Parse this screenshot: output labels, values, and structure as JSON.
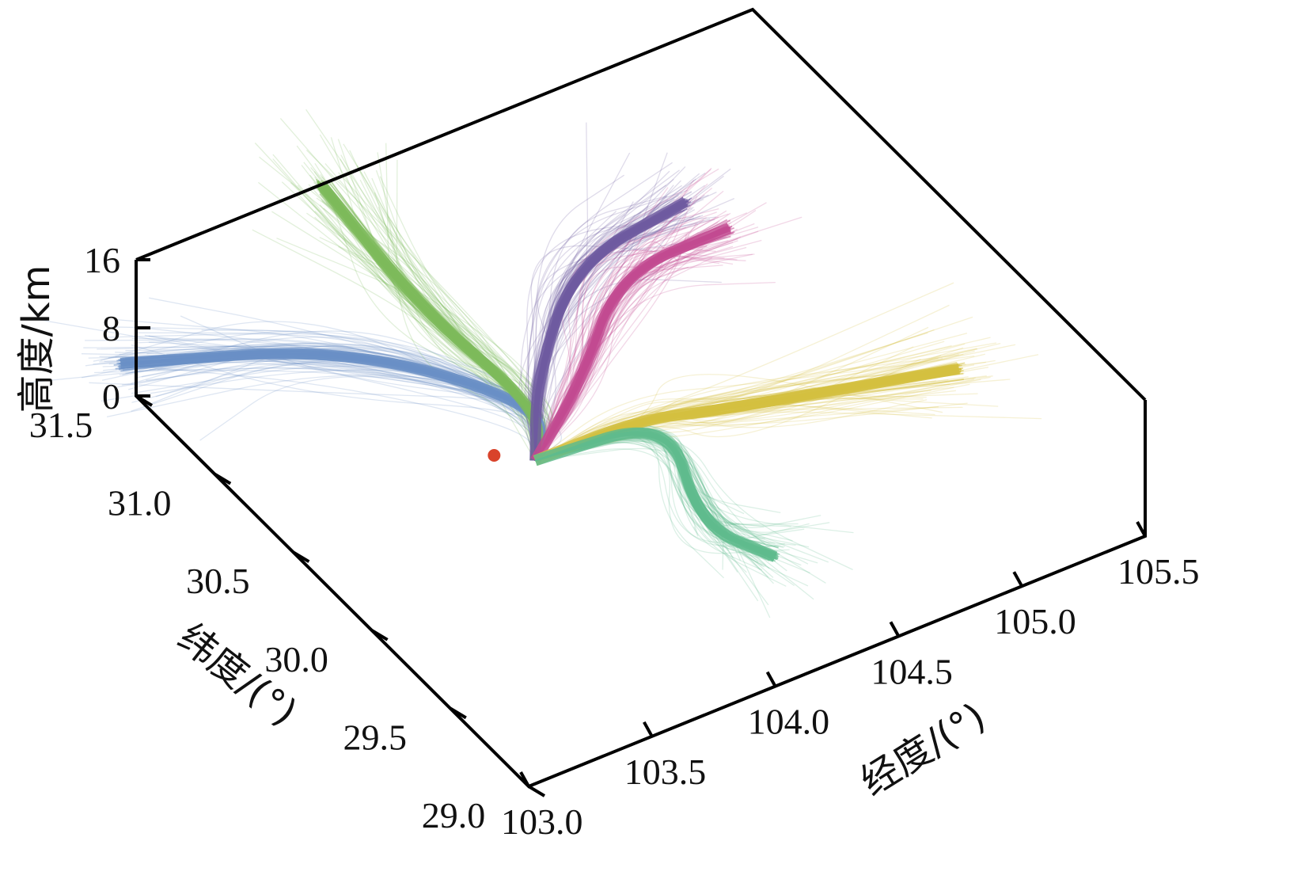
{
  "chart_data": {
    "type": "line3d",
    "xlabel": "经度/(°)",
    "ylabel": "纬度/(°)",
    "zlabel": "高度/km",
    "x_ticks": [
      "103.0",
      "103.5",
      "104.0",
      "104.5",
      "105.0",
      "105.5"
    ],
    "y_ticks": [
      "29.0",
      "29.5",
      "30.0",
      "30.5",
      "31.0",
      "31.5"
    ],
    "z_ticks": [
      "0",
      "8",
      "16"
    ],
    "xlim": [
      103.0,
      105.5
    ],
    "ylim": [
      29.0,
      31.5
    ],
    "zlim": [
      0,
      16
    ],
    "origin_point": {
      "color": "#d9432b"
    },
    "series": [
      {
        "color": "#6a8fc6",
        "values": [
          [
            103.95,
            30.45,
            0.5
          ],
          [
            104.05,
            30.55,
            4
          ],
          [
            103.6,
            31.1,
            6
          ],
          [
            103.0,
            31.6,
            2
          ]
        ]
      },
      {
        "color": "#7dba5a",
        "values": [
          [
            103.95,
            30.45,
            0.5
          ],
          [
            104.0,
            30.5,
            5
          ],
          [
            103.85,
            31.0,
            9
          ],
          [
            103.75,
            31.5,
            16
          ]
        ]
      },
      {
        "color": "#6e5aa0",
        "values": [
          [
            103.95,
            30.45,
            0.5
          ],
          [
            104.05,
            30.6,
            6
          ],
          [
            104.3,
            30.75,
            14
          ],
          [
            104.75,
            30.75,
            16
          ]
        ]
      },
      {
        "color": "#c24a91",
        "values": [
          [
            103.95,
            30.45,
            0.5
          ],
          [
            104.2,
            30.55,
            5
          ],
          [
            104.45,
            30.7,
            12
          ],
          [
            104.8,
            30.55,
            16
          ]
        ]
      },
      {
        "color": "#d4bf40",
        "values": [
          [
            103.95,
            30.45,
            0.5
          ],
          [
            104.3,
            30.35,
            3
          ],
          [
            104.55,
            30.2,
            4
          ],
          [
            105.35,
            29.95,
            4
          ]
        ]
      },
      {
        "color": "#5fbb8d",
        "values": [
          [
            103.95,
            30.45,
            0.5
          ],
          [
            104.4,
            30.3,
            3
          ],
          [
            104.2,
            29.8,
            2
          ],
          [
            104.35,
            29.55,
            1
          ]
        ]
      }
    ]
  }
}
